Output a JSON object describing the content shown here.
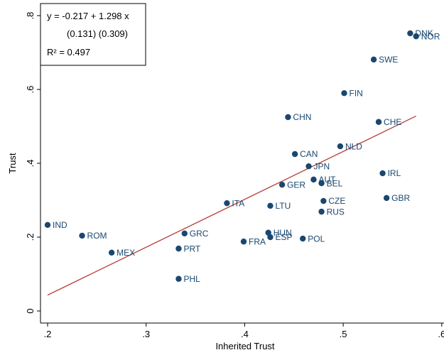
{
  "chart_data": {
    "type": "scatter",
    "xlabel": "Inherited Trust",
    "ylabel": "Trust",
    "labels": [
      "IND",
      "ROM",
      "MEX",
      "PHL",
      "PRT",
      "GRC",
      "ITA",
      "FRA",
      "HUN",
      "ESP",
      "LTU",
      "POL",
      "GER",
      "CAN",
      "CHN",
      "JPN",
      "AUT",
      "BEL",
      "CZE",
      "RUS",
      "NLD",
      "FIN",
      "SWE",
      "DNK",
      "NOR",
      "CHE",
      "IRL",
      "GBR"
    ],
    "x": [
      0.2,
      0.235,
      0.265,
      0.333,
      0.333,
      0.339,
      0.382,
      0.399,
      0.424,
      0.426,
      0.426,
      0.459,
      0.438,
      0.451,
      0.444,
      0.465,
      0.47,
      0.478,
      0.48,
      0.478,
      0.497,
      0.501,
      0.531,
      0.568,
      0.574,
      0.536,
      0.54,
      0.544
    ],
    "y": [
      0.233,
      0.204,
      0.158,
      0.087,
      0.169,
      0.21,
      0.292,
      0.188,
      0.212,
      0.2,
      0.285,
      0.196,
      0.342,
      0.425,
      0.525,
      0.392,
      0.356,
      0.346,
      0.298,
      0.269,
      0.446,
      0.59,
      0.681,
      0.752,
      0.744,
      0.512,
      0.373,
      0.306
    ],
    "color": "#1a476f",
    "fit": {
      "x": [
        0.2,
        0.574
      ],
      "y": [
        0.043,
        0.528
      ],
      "color": "#b5413a"
    },
    "annotation": {
      "equation": "y  = -0.217 +  1.298 x",
      "se": "(0.131)   (0.309)",
      "r2": "R² = 0.497"
    },
    "xlim": [
      0.1928,
      0.6023
    ],
    "ylim": [
      -0.0327,
      0.8327
    ],
    "xticks": [
      {
        "value": 0.2,
        "label": ".2"
      },
      {
        "value": 0.3,
        "label": ".3"
      },
      {
        "value": 0.4,
        "label": ".4"
      },
      {
        "value": 0.5,
        "label": ".5"
      },
      {
        "value": 0.6,
        "label": ".6"
      }
    ],
    "yticks": [
      0,
      {
        "value": 0.2,
        "label": ".2"
      },
      {
        "value": 0.4,
        "label": ".4"
      },
      {
        "value": 0.6,
        "label": ".6"
      },
      {
        "value": 0.8,
        "label": ".8"
      }
    ],
    "grid": false
  }
}
